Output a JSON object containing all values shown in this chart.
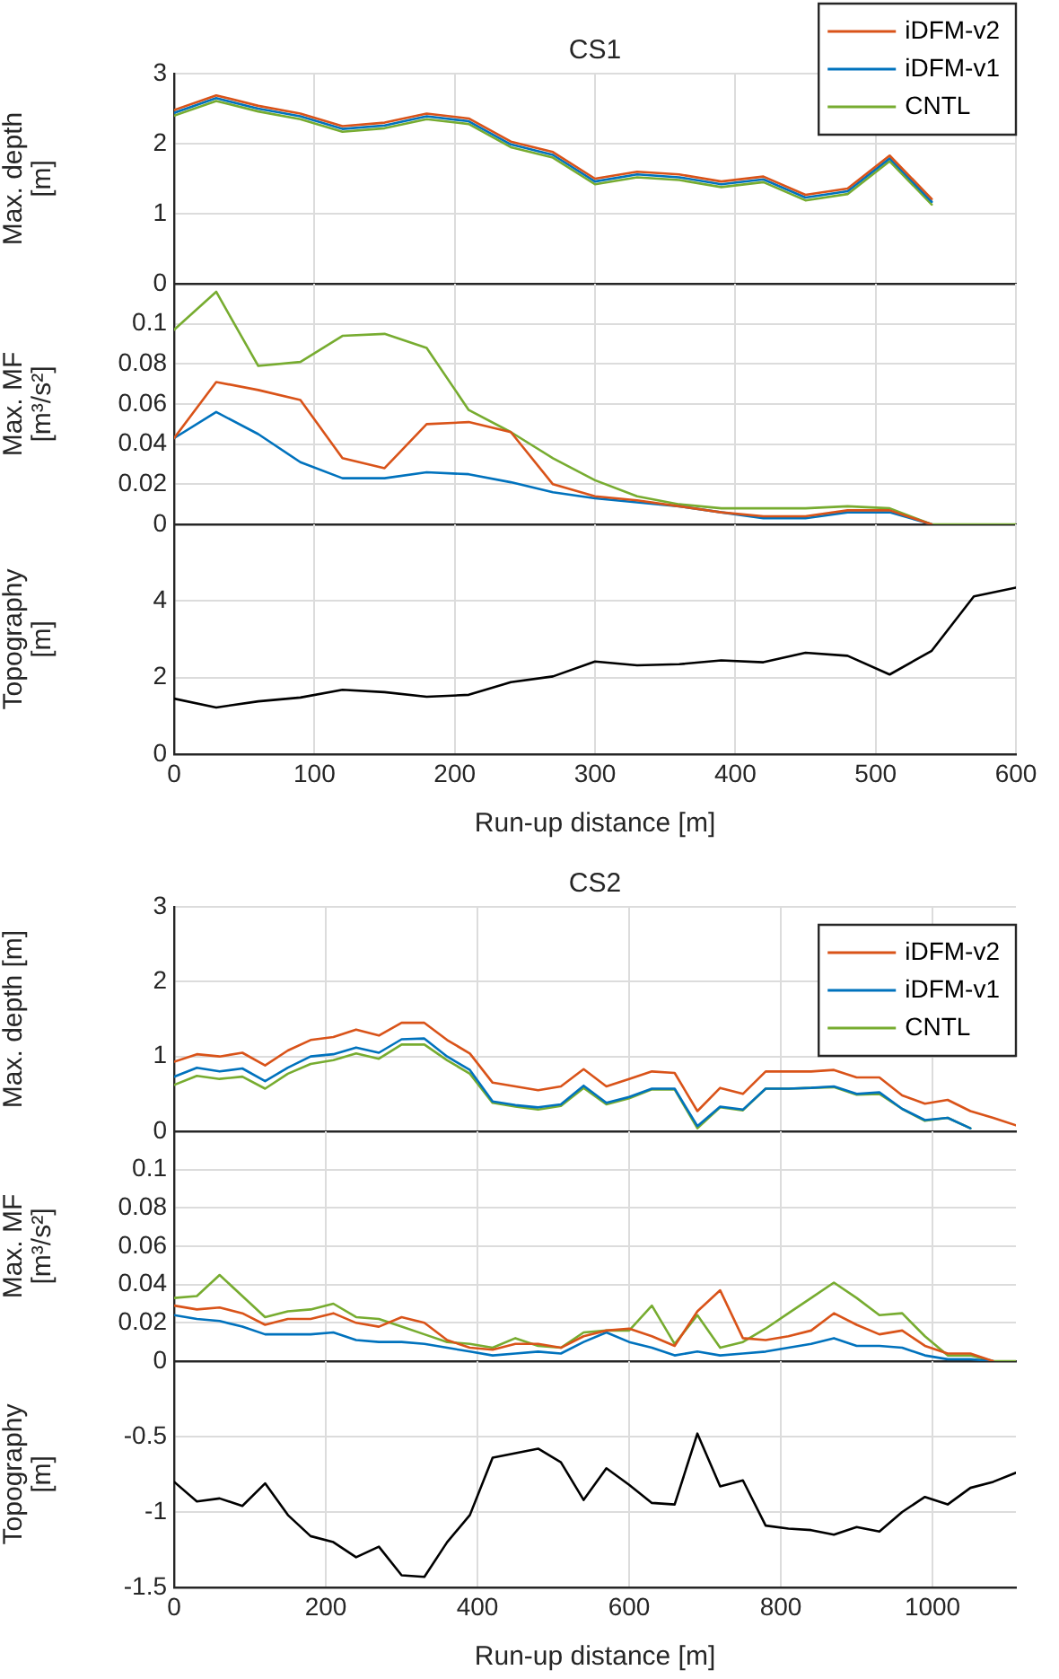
{
  "chart_data": [
    {
      "type": "line",
      "title": "CS1",
      "ylabel": "Max. depth\n[m]",
      "x": [
        0,
        30,
        60,
        90,
        120,
        150,
        180,
        210,
        240,
        270,
        300,
        330,
        360,
        390,
        420,
        450,
        480,
        510,
        540
      ],
      "xlim": [
        0,
        600
      ],
      "xticks": [
        {
          "value": 0,
          "label": null
        },
        {
          "value": 100,
          "label": null
        },
        {
          "value": 200,
          "label": null
        },
        {
          "value": 300,
          "label": null
        },
        {
          "value": 400,
          "label": null
        },
        {
          "value": 500,
          "label": null
        },
        {
          "value": 600,
          "label": null
        }
      ],
      "ylim": [
        0,
        3
      ],
      "yticks": [
        0,
        1,
        2,
        3
      ],
      "grid": true,
      "legend": "top right",
      "tick_labels": "y",
      "series": [
        {
          "name": "iDFM-v2",
          "color": "#d95319",
          "values": [
            2.48,
            2.69,
            2.54,
            2.43,
            2.25,
            2.3,
            2.43,
            2.36,
            2.03,
            1.88,
            1.5,
            1.6,
            1.56,
            1.46,
            1.53,
            1.27,
            1.36,
            1.83,
            1.21
          ]
        },
        {
          "name": "iDFM-v1",
          "color": "#0072bd",
          "values": [
            2.44,
            2.65,
            2.5,
            2.39,
            2.21,
            2.26,
            2.39,
            2.32,
            1.99,
            1.84,
            1.46,
            1.56,
            1.52,
            1.42,
            1.49,
            1.23,
            1.32,
            1.79,
            1.17
          ]
        },
        {
          "name": "CNTL",
          "color": "#77ac30",
          "values": [
            2.4,
            2.61,
            2.46,
            2.35,
            2.17,
            2.22,
            2.35,
            2.28,
            1.95,
            1.8,
            1.42,
            1.52,
            1.48,
            1.38,
            1.45,
            1.19,
            1.28,
            1.75,
            1.13
          ]
        }
      ]
    },
    {
      "type": "line",
      "ylabel": "Max. MF\n[m³/s²]",
      "x": [
        0,
        30,
        60,
        90,
        120,
        150,
        180,
        210,
        240,
        270,
        300,
        330,
        360,
        390,
        420,
        450,
        480,
        510,
        540,
        570,
        600
      ],
      "xlim": [
        0,
        600
      ],
      "xticks": [
        {
          "value": 0,
          "label": null
        },
        {
          "value": 100,
          "label": null
        },
        {
          "value": 200,
          "label": null
        },
        {
          "value": 300,
          "label": null
        },
        {
          "value": 400,
          "label": null
        },
        {
          "value": 500,
          "label": null
        },
        {
          "value": 600,
          "label": null
        }
      ],
      "ylim": [
        0,
        0.12
      ],
      "yticks": [
        0,
        0.02,
        0.04,
        0.06,
        0.08,
        0.1
      ],
      "grid": true,
      "tick_labels": "y",
      "series": [
        {
          "color": "#d95319",
          "values": [
            0.043,
            0.071,
            0.067,
            0.062,
            0.033,
            0.028,
            0.05,
            0.051,
            0.046,
            0.02,
            0.014,
            0.012,
            0.009,
            0.006,
            0.004,
            0.004,
            0.007,
            0.007,
            0,
            null,
            null
          ]
        },
        {
          "color": "#0072bd",
          "values": [
            0.043,
            0.056,
            0.045,
            0.031,
            0.023,
            0.023,
            0.026,
            0.025,
            0.021,
            0.016,
            0.013,
            0.011,
            0.009,
            0.006,
            0.003,
            0.003,
            0.006,
            0.006,
            0,
            null,
            null
          ]
        },
        {
          "color": "#77ac30",
          "values": [
            0.097,
            0.116,
            0.079,
            0.081,
            0.094,
            0.095,
            0.088,
            0.057,
            0.046,
            0.033,
            0.022,
            0.014,
            0.01,
            0.008,
            0.008,
            0.008,
            0.009,
            0.008,
            0,
            0,
            0
          ]
        }
      ]
    },
    {
      "type": "line",
      "ylabel": "Topography\n[m]",
      "xlabel": "Run-up distance [m]",
      "x": [
        0,
        30,
        60,
        90,
        120,
        150,
        180,
        210,
        240,
        270,
        300,
        330,
        360,
        390,
        420,
        450,
        480,
        510,
        540,
        570,
        600
      ],
      "xlim": [
        0,
        600
      ],
      "xticks": [
        0,
        100,
        200,
        300,
        400,
        500,
        600
      ],
      "ylim": [
        0,
        6
      ],
      "yticks": [
        0,
        2,
        4
      ],
      "grid": true,
      "series": [
        {
          "color": "#000000",
          "values": [
            1.45,
            1.22,
            1.38,
            1.48,
            1.68,
            1.62,
            1.5,
            1.55,
            1.88,
            2.03,
            2.42,
            2.32,
            2.35,
            2.45,
            2.4,
            2.65,
            2.57,
            2.08,
            2.7,
            4.12,
            4.35
          ]
        }
      ]
    },
    {
      "type": "line",
      "title": "CS2",
      "ylabel": "Max. depth [m]",
      "x": [
        0,
        30,
        60,
        90,
        120,
        150,
        180,
        210,
        240,
        270,
        300,
        330,
        360,
        390,
        420,
        450,
        480,
        510,
        540,
        570,
        600,
        630,
        660,
        690,
        720,
        750,
        780,
        810,
        840,
        870,
        900,
        930,
        960,
        990,
        1020,
        1050,
        1080,
        1110
      ],
      "xlim": [
        0,
        1110
      ],
      "xticks": [
        {
          "value": 0,
          "label": null
        },
        {
          "value": 200,
          "label": null
        },
        {
          "value": 400,
          "label": null
        },
        {
          "value": 600,
          "label": null
        },
        {
          "value": 800,
          "label": null
        },
        {
          "value": 1000,
          "label": null
        }
      ],
      "ylim": [
        0,
        3
      ],
      "yticks": [
        0,
        1,
        2,
        3
      ],
      "grid": true,
      "legend": "top right",
      "tick_labels": "y",
      "series": [
        {
          "name": "iDFM-v2",
          "color": "#d95319",
          "values": [
            0.93,
            1.03,
            1.0,
            1.05,
            0.88,
            1.08,
            1.22,
            1.26,
            1.36,
            1.28,
            1.45,
            1.45,
            1.22,
            1.04,
            0.65,
            0.6,
            0.55,
            0.6,
            0.83,
            0.6,
            0.7,
            0.8,
            0.78,
            0.27,
            0.58,
            0.5,
            0.8,
            0.8,
            0.8,
            0.82,
            0.72,
            0.72,
            0.48,
            0.37,
            0.42,
            0.27,
            0.18,
            0.08
          ]
        },
        {
          "name": "iDFM-v1",
          "color": "#0072bd",
          "values": [
            0.73,
            0.85,
            0.8,
            0.84,
            0.67,
            0.85,
            1.0,
            1.03,
            1.12,
            1.05,
            1.23,
            1.24,
            1.0,
            0.82,
            0.4,
            0.35,
            0.32,
            0.36,
            0.61,
            0.38,
            0.46,
            0.57,
            0.57,
            0.07,
            0.33,
            0.29,
            0.57,
            0.57,
            0.58,
            0.6,
            0.5,
            0.52,
            0.3,
            0.15,
            0.18,
            0.04,
            null,
            null
          ]
        },
        {
          "name": "CNTL",
          "color": "#77ac30",
          "values": [
            0.62,
            0.74,
            0.7,
            0.73,
            0.57,
            0.77,
            0.9,
            0.95,
            1.04,
            0.97,
            1.16,
            1.16,
            0.95,
            0.77,
            0.38,
            0.33,
            0.29,
            0.34,
            0.58,
            0.36,
            0.44,
            0.56,
            0.56,
            0.04,
            0.32,
            0.28,
            0.57,
            0.57,
            0.58,
            0.59,
            0.49,
            0.5,
            0.3,
            0.14,
            0.18,
            0.04,
            null,
            null
          ]
        }
      ]
    },
    {
      "type": "line",
      "ylabel": "Max. MF\n[m³/s²]",
      "x": [
        0,
        30,
        60,
        90,
        120,
        150,
        180,
        210,
        240,
        270,
        300,
        330,
        360,
        390,
        420,
        450,
        480,
        510,
        540,
        570,
        600,
        630,
        660,
        690,
        720,
        750,
        780,
        810,
        840,
        870,
        900,
        930,
        960,
        990,
        1020,
        1050,
        1080,
        1110
      ],
      "xlim": [
        0,
        1110
      ],
      "xticks": [
        {
          "value": 0,
          "label": null
        },
        {
          "value": 200,
          "label": null
        },
        {
          "value": 400,
          "label": null
        },
        {
          "value": 600,
          "label": null
        },
        {
          "value": 800,
          "label": null
        },
        {
          "value": 1000,
          "label": null
        }
      ],
      "ylim": [
        0,
        0.12
      ],
      "yticks": [
        0,
        0.02,
        0.04,
        0.06,
        0.08,
        0.1
      ],
      "grid": true,
      "tick_labels": "y",
      "series": [
        {
          "color": "#d95319",
          "values": [
            0.029,
            0.027,
            0.028,
            0.025,
            0.019,
            0.022,
            0.022,
            0.025,
            0.02,
            0.018,
            0.023,
            0.02,
            0.011,
            0.007,
            0.006,
            0.009,
            0.009,
            0.007,
            0.013,
            0.016,
            0.017,
            0.013,
            0.008,
            0.026,
            0.037,
            0.012,
            0.011,
            0.013,
            0.016,
            0.025,
            0.019,
            0.014,
            0.016,
            0.008,
            0.004,
            0.004,
            0,
            null
          ]
        },
        {
          "color": "#0072bd",
          "values": [
            0.024,
            0.022,
            0.021,
            0.018,
            0.014,
            0.014,
            0.014,
            0.015,
            0.011,
            0.01,
            0.01,
            0.009,
            0.007,
            0.005,
            0.003,
            0.004,
            0.005,
            0.004,
            0.01,
            0.015,
            0.01,
            0.007,
            0.003,
            0.005,
            0.003,
            0.004,
            0.005,
            0.007,
            0.009,
            0.012,
            0.008,
            0.008,
            0.007,
            0.003,
            0.001,
            0.001,
            0,
            null
          ]
        },
        {
          "color": "#77ac30",
          "values": [
            0.033,
            0.034,
            0.045,
            0.034,
            0.023,
            0.026,
            0.027,
            0.03,
            0.023,
            0.022,
            0.018,
            0.014,
            0.01,
            0.009,
            0.007,
            0.012,
            0.008,
            0.007,
            0.015,
            0.016,
            0.016,
            0.029,
            0.009,
            0.024,
            0.007,
            0.01,
            0.017,
            0.025,
            0.033,
            0.041,
            0.033,
            0.024,
            0.025,
            0.013,
            0.003,
            0.003,
            0,
            0
          ]
        }
      ]
    },
    {
      "type": "line",
      "ylabel": "Topography\n[m]",
      "xlabel": "Run-up distance [m]",
      "x": [
        0,
        30,
        60,
        90,
        120,
        150,
        180,
        210,
        240,
        270,
        300,
        330,
        360,
        390,
        420,
        450,
        480,
        510,
        540,
        570,
        600,
        630,
        660,
        690,
        720,
        750,
        780,
        810,
        840,
        870,
        900,
        930,
        960,
        990,
        1020,
        1050,
        1080,
        1110
      ],
      "xlim": [
        0,
        1110
      ],
      "xticks": [
        0,
        200,
        400,
        600,
        800,
        1000
      ],
      "ylim": [
        -1.5,
        0
      ],
      "yticks": [
        -1.5,
        -1,
        -0.5
      ],
      "grid": true,
      "series": [
        {
          "color": "#000000",
          "values": [
            -0.8,
            -0.93,
            -0.91,
            -0.96,
            -0.81,
            -1.02,
            -1.16,
            -1.2,
            -1.3,
            -1.23,
            -1.42,
            -1.43,
            -1.2,
            -1.02,
            -0.64,
            -0.61,
            -0.58,
            -0.67,
            -0.92,
            -0.71,
            -0.82,
            -0.94,
            -0.95,
            -0.48,
            -0.83,
            -0.79,
            -1.09,
            -1.11,
            -1.12,
            -1.15,
            -1.1,
            -1.13,
            -1.0,
            -0.9,
            -0.95,
            -0.84,
            -0.8,
            -0.74
          ]
        }
      ]
    }
  ]
}
